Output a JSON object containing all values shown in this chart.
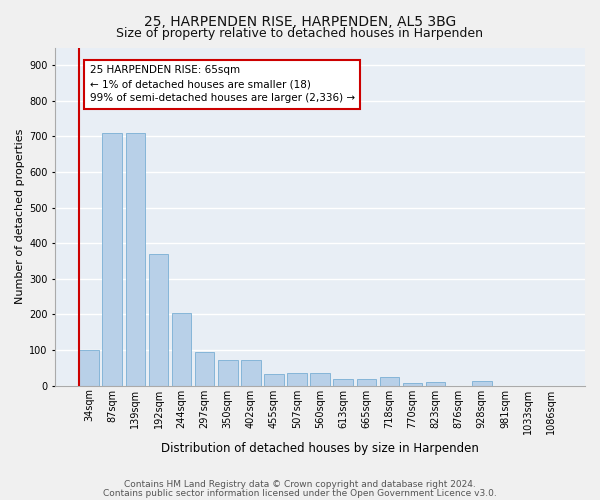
{
  "title1": "25, HARPENDEN RISE, HARPENDEN, AL5 3BG",
  "title2": "Size of property relative to detached houses in Harpenden",
  "xlabel": "Distribution of detached houses by size in Harpenden",
  "ylabel": "Number of detached properties",
  "bar_labels": [
    "34sqm",
    "87sqm",
    "139sqm",
    "192sqm",
    "244sqm",
    "297sqm",
    "350sqm",
    "402sqm",
    "455sqm",
    "507sqm",
    "560sqm",
    "613sqm",
    "665sqm",
    "718sqm",
    "770sqm",
    "823sqm",
    "876sqm",
    "928sqm",
    "981sqm",
    "1033sqm",
    "1086sqm"
  ],
  "bar_values": [
    100,
    710,
    710,
    370,
    205,
    95,
    72,
    72,
    32,
    35,
    35,
    18,
    20,
    25,
    8,
    10,
    0,
    12,
    0,
    0,
    0
  ],
  "bar_color": "#b8d0e8",
  "bar_edge_color": "#7aafd4",
  "annotation_text": "25 HARPENDEN RISE: 65sqm\n← 1% of detached houses are smaller (18)\n99% of semi-detached houses are larger (2,336) →",
  "annotation_box_color": "#ffffff",
  "annotation_border_color": "#cc0000",
  "ylim": [
    0,
    950
  ],
  "yticks": [
    0,
    100,
    200,
    300,
    400,
    500,
    600,
    700,
    800,
    900
  ],
  "bg_color": "#e8eef5",
  "grid_color": "#ffffff",
  "footer_line1": "Contains HM Land Registry data © Crown copyright and database right 2024.",
  "footer_line2": "Contains public sector information licensed under the Open Government Licence v3.0.",
  "title1_fontsize": 10,
  "title2_fontsize": 9,
  "xlabel_fontsize": 8.5,
  "ylabel_fontsize": 8,
  "tick_fontsize": 7,
  "annotation_fontsize": 7.5,
  "footer_fontsize": 6.5
}
